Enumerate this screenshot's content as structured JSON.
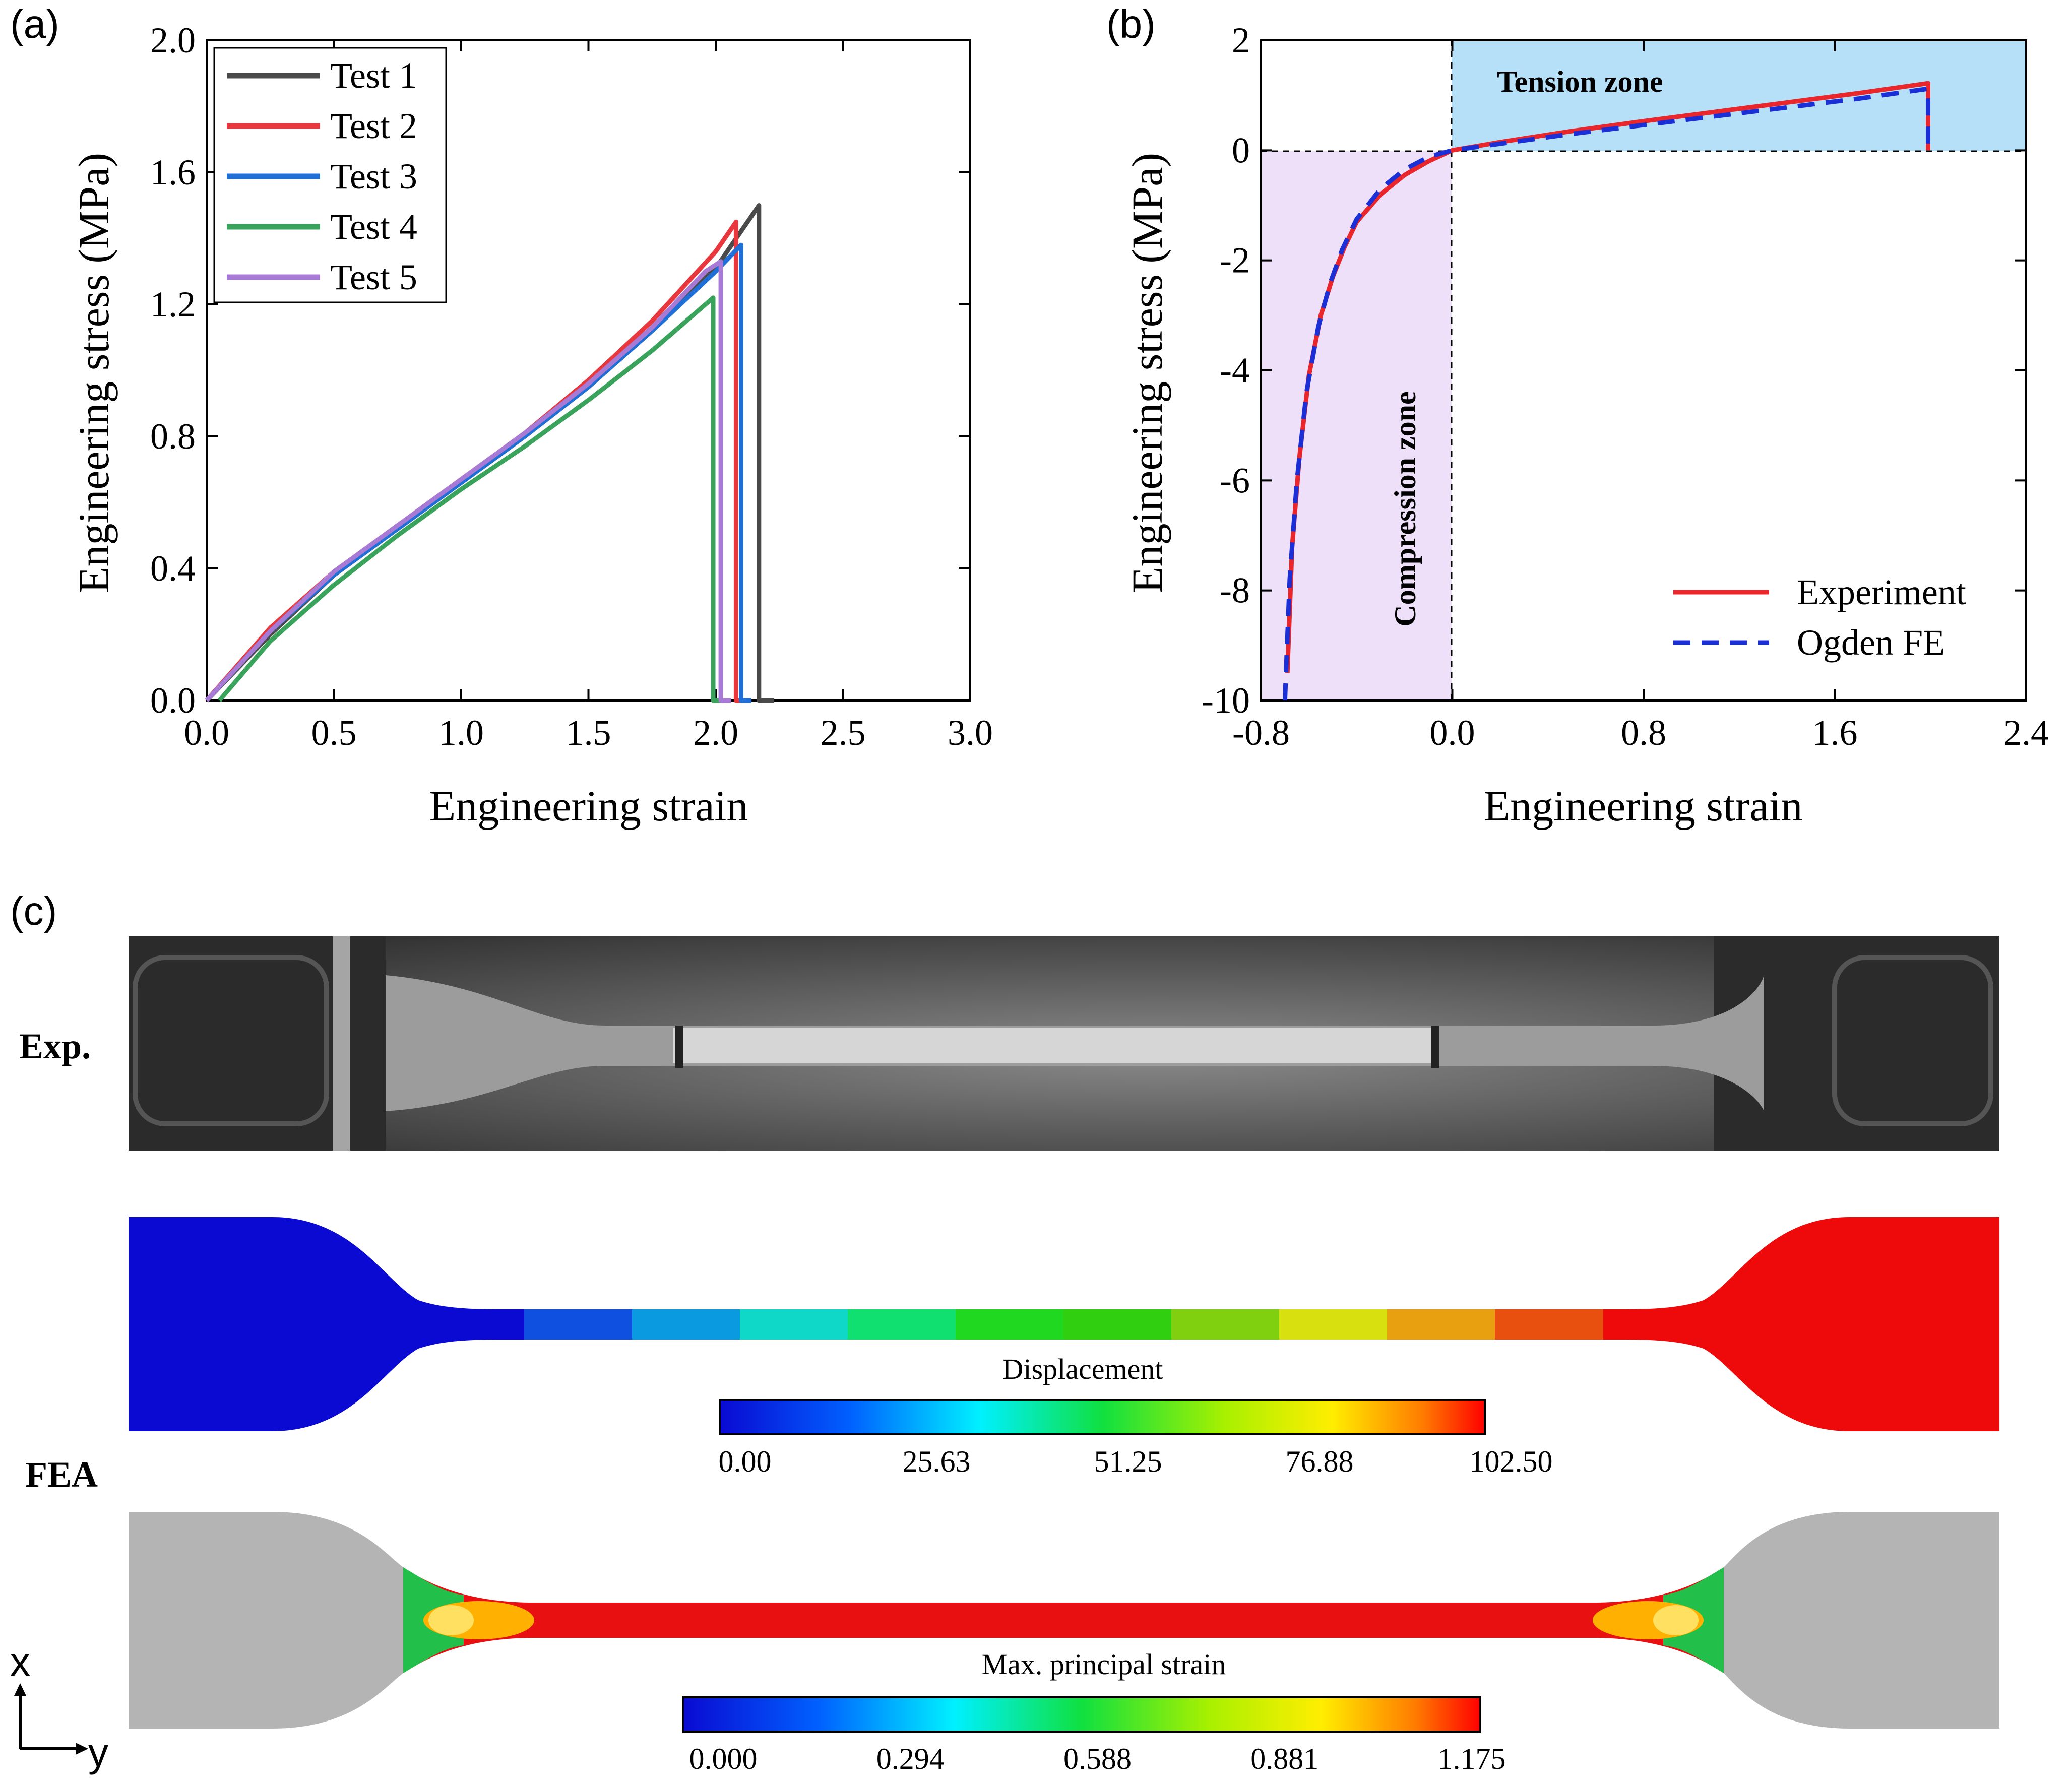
{
  "panel_labels": {
    "a": "(a)",
    "b": "(b)",
    "c": "(c)"
  },
  "chart_data": [
    {
      "type": "line",
      "panel": "(a)",
      "xlabel": "Engineering strain",
      "ylabel": "Engineering stress (MPa)",
      "xlim": [
        0.0,
        3.0
      ],
      "ylim": [
        0.0,
        2.0
      ],
      "xticks": [
        "0.0",
        "0.5",
        "1.0",
        "1.5",
        "2.0",
        "2.5",
        "3.0"
      ],
      "yticks": [
        "0.0",
        "0.4",
        "0.8",
        "1.2",
        "1.6",
        "2.0"
      ],
      "legend_position": "top-left",
      "series": [
        {
          "name": "Test 1",
          "color": "#4a4a4a",
          "x": [
            0.0,
            0.25,
            0.5,
            0.75,
            1.0,
            1.25,
            1.5,
            1.75,
            2.0,
            2.17,
            2.17,
            2.23
          ],
          "y": [
            0.0,
            0.2,
            0.38,
            0.52,
            0.66,
            0.8,
            0.95,
            1.12,
            1.31,
            1.5,
            0.0,
            0.0
          ]
        },
        {
          "name": "Test 2",
          "color": "#e8383d",
          "x": [
            0.0,
            0.25,
            0.5,
            0.75,
            1.0,
            1.25,
            1.5,
            1.75,
            2.0,
            2.08,
            2.08,
            2.12
          ],
          "y": [
            0.0,
            0.22,
            0.39,
            0.53,
            0.67,
            0.81,
            0.97,
            1.15,
            1.36,
            1.45,
            0.0,
            0.0
          ]
        },
        {
          "name": "Test 3",
          "color": "#1f6fd6",
          "x": [
            0.0,
            0.25,
            0.5,
            0.75,
            1.0,
            1.25,
            1.5,
            1.75,
            2.0,
            2.1,
            2.1,
            2.14
          ],
          "y": [
            0.0,
            0.21,
            0.38,
            0.52,
            0.66,
            0.8,
            0.95,
            1.12,
            1.3,
            1.38,
            0.0,
            0.0
          ]
        },
        {
          "name": "Test 4",
          "color": "#3aa35b",
          "x": [
            0.05,
            0.25,
            0.5,
            0.75,
            1.0,
            1.25,
            1.5,
            1.75,
            1.99,
            1.99,
            2.02
          ],
          "y": [
            0.0,
            0.18,
            0.35,
            0.5,
            0.64,
            0.77,
            0.91,
            1.06,
            1.22,
            0.0,
            0.0
          ]
        },
        {
          "name": "Test 5",
          "color": "#a77ad6",
          "x": [
            0.0,
            0.25,
            0.5,
            0.75,
            1.0,
            1.25,
            1.5,
            1.75,
            1.96,
            2.02,
            2.02,
            2.06
          ],
          "y": [
            0.0,
            0.21,
            0.39,
            0.53,
            0.67,
            0.81,
            0.96,
            1.13,
            1.3,
            1.33,
            0.0,
            0.0
          ]
        }
      ]
    },
    {
      "type": "line",
      "panel": "(b)",
      "xlabel": "Engineering strain",
      "ylabel": "Engineering stress (MPa)",
      "xlim": [
        -0.8,
        2.4
      ],
      "ylim": [
        -10,
        2
      ],
      "xticks": [
        "-0.8",
        "0.0",
        "0.8",
        "1.6",
        "2.4"
      ],
      "yticks": [
        "2",
        "0",
        "-2",
        "-4",
        "-6",
        "-8",
        "-10"
      ],
      "annotations": [
        "Tension zone",
        "Compression zone"
      ],
      "legend_position": "bottom-right",
      "series": [
        {
          "name": "Experiment",
          "color": "#e8262b",
          "x": [
            -0.69,
            -0.67,
            -0.64,
            -0.6,
            -0.55,
            -0.5,
            -0.45,
            -0.4,
            -0.3,
            -0.2,
            -0.1,
            0.0,
            0.2,
            0.5,
            0.8,
            1.1,
            1.4,
            1.7,
            1.99,
            1.99
          ],
          "y": [
            -9.5,
            -7.2,
            -5.6,
            -4.1,
            -3.0,
            -2.3,
            -1.75,
            -1.3,
            -0.8,
            -0.45,
            -0.2,
            0.0,
            0.15,
            0.35,
            0.53,
            0.7,
            0.87,
            1.04,
            1.22,
            0.0
          ]
        },
        {
          "name": "Ogden FE",
          "color": "#1a2fd6",
          "dash": true,
          "x": [
            -0.7,
            -0.68,
            -0.65,
            -0.61,
            -0.56,
            -0.51,
            -0.46,
            -0.4,
            -0.3,
            -0.2,
            -0.1,
            0.0,
            0.2,
            0.5,
            0.8,
            1.1,
            1.4,
            1.7,
            1.99,
            1.99
          ],
          "y": [
            -10,
            -7.8,
            -6.0,
            -4.4,
            -3.2,
            -2.4,
            -1.8,
            -1.25,
            -0.7,
            -0.35,
            -0.12,
            0.0,
            0.12,
            0.3,
            0.46,
            0.62,
            0.78,
            0.94,
            1.12,
            0.0
          ]
        }
      ]
    }
  ],
  "panel_c": {
    "row_labels": {
      "exp": "Exp.",
      "fea": "FEA"
    },
    "displacement": {
      "title": "Displacement",
      "ticks": [
        "0.00",
        "25.63",
        "51.25",
        "76.88",
        "102.50"
      ]
    },
    "strain": {
      "title": "Max. principal strain",
      "ticks": [
        "0.000",
        "0.294",
        "0.588",
        "0.881",
        "1.175"
      ]
    },
    "axis_labels": {
      "x": "x",
      "y": "y"
    }
  }
}
